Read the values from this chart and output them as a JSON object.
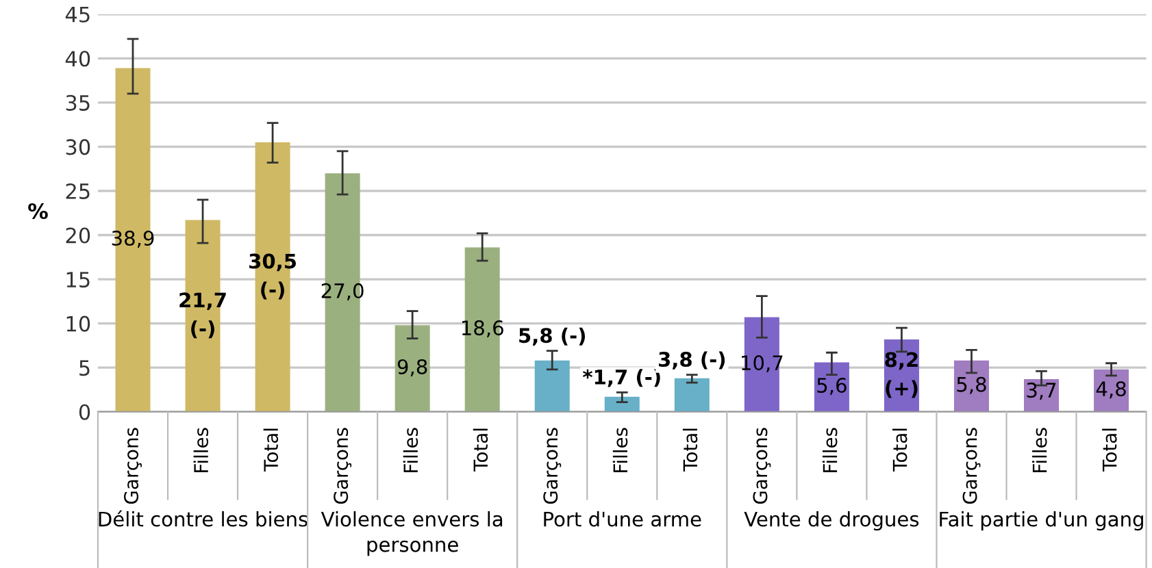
{
  "chart_data": {
    "type": "bar",
    "ylabel": "%",
    "categories": [
      "Garçons",
      "Filles",
      "Total",
      "Garçons",
      "Filles",
      "Total",
      "Garçons",
      "Filles",
      "Total",
      "Garçons",
      "Filles",
      "Total",
      "Garçons",
      "Filles",
      "Total"
    ],
    "values": [
      38.9,
      21.7,
      30.5,
      27.0,
      9.8,
      18.6,
      5.8,
      1.7,
      3.8,
      10.7,
      5.6,
      8.2,
      5.8,
      3.7,
      4.8
    ],
    "colors": [
      "#cfb964",
      "#cfb964",
      "#cfb964",
      "#9bb07f",
      "#9bb07f",
      "#9bb07f",
      "#67b0c8",
      "#67b0c8",
      "#67b0c8",
      "#7d66c8",
      "#7d66c8",
      "#7d66c8",
      "#a07cc0",
      "#a07cc0",
      "#a07cc0"
    ],
    "errors": [
      [
        36.0,
        42.2
      ],
      [
        19.1,
        24.0
      ],
      [
        28.2,
        32.7
      ],
      [
        24.6,
        29.5
      ],
      [
        8.3,
        11.4
      ],
      [
        17.1,
        20.2
      ],
      [
        4.8,
        6.9
      ],
      [
        1.1,
        2.2
      ],
      [
        3.3,
        4.2
      ],
      [
        8.4,
        13.1
      ],
      [
        4.2,
        6.7
      ],
      [
        6.8,
        9.5
      ],
      [
        4.4,
        7.0
      ],
      [
        3.0,
        4.6
      ],
      [
        4.1,
        5.5
      ]
    ],
    "value_labels": [
      "38,9",
      "21,7\n(-)",
      "30,5\n(-)",
      "27,0",
      "9,8",
      "18,6",
      "5,8 (-)",
      "*1,7 (-)",
      "3,8 (-)",
      "10,7",
      "5,6",
      "8,2\n(+)",
      "5,8",
      "3,7",
      "4,8"
    ],
    "annotations": [
      "Délit contre les biens",
      "Violence envers la\npersonne",
      "Port d'une arme",
      "Vente de drogues",
      "Fait partie d'un gang"
    ],
    "ylim": [
      0,
      45
    ],
    "yticks": [
      0,
      5,
      10,
      15,
      20,
      25,
      30,
      35,
      40,
      45
    ],
    "grid": "y"
  }
}
